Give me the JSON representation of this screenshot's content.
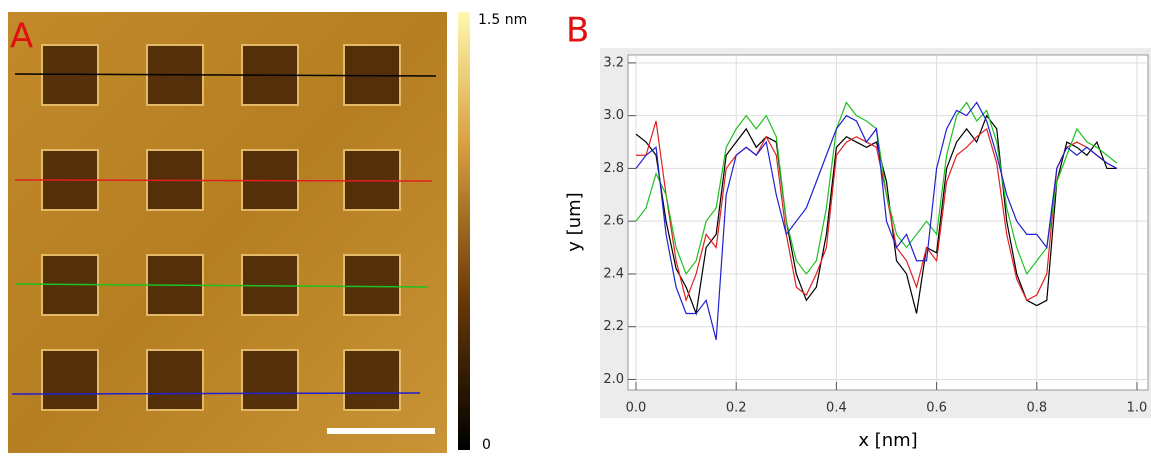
{
  "panels": {
    "a": "A",
    "b": "B"
  },
  "colorbar": {
    "max_label": "1.5 nm",
    "min_label": "0"
  },
  "chart_data": {
    "type": "line",
    "xlabel": "x [nm]",
    "ylabel": "y [um]",
    "xlim": [
      -0.016,
      1.022
    ],
    "ylim": [
      1.96,
      3.23
    ],
    "xticks": [
      {
        "value": 0,
        "label": "0.0"
      },
      0.2,
      0.4,
      0.6,
      0.8,
      {
        "value": 1,
        "label": "1.0"
      }
    ],
    "yticks": [
      {
        "value": 2,
        "label": "2.0"
      },
      2.2,
      2.4,
      2.6,
      2.8,
      {
        "value": 3,
        "label": "3.0"
      },
      3.2
    ],
    "grid": true,
    "x": [
      0,
      0.02,
      0.04,
      0.06,
      0.08,
      0.1,
      0.12,
      0.14,
      0.16,
      0.18,
      0.2,
      0.22,
      0.24,
      0.26,
      0.28,
      0.3,
      0.32,
      0.34,
      0.36,
      0.38,
      0.4,
      0.42,
      0.44,
      0.46,
      0.48,
      0.5,
      0.52,
      0.54,
      0.56,
      0.58,
      0.6,
      0.62,
      0.64,
      0.66,
      0.68,
      0.7,
      0.72,
      0.74,
      0.76,
      0.78,
      0.8,
      0.82,
      0.84,
      0.86,
      0.88,
      0.9,
      0.92,
      0.94,
      0.96
    ],
    "series": [
      {
        "color": "#000000",
        "values": [
          2.93,
          2.9,
          2.85,
          2.6,
          2.42,
          2.35,
          2.25,
          2.5,
          2.55,
          2.85,
          2.9,
          2.95,
          2.88,
          2.92,
          2.9,
          2.6,
          2.4,
          2.3,
          2.35,
          2.55,
          2.88,
          2.92,
          2.9,
          2.88,
          2.9,
          2.75,
          2.45,
          2.4,
          2.25,
          2.5,
          2.48,
          2.8,
          2.9,
          2.95,
          2.9,
          3.0,
          2.95,
          2.6,
          2.4,
          2.3,
          2.28,
          2.3,
          2.75,
          2.9,
          2.88,
          2.85,
          2.9,
          2.8,
          2.8
        ]
      },
      {
        "color": "#e02020",
        "values": [
          2.85,
          2.85,
          2.98,
          2.7,
          2.45,
          2.3,
          2.4,
          2.55,
          2.5,
          2.8,
          2.85,
          2.88,
          2.85,
          2.92,
          2.85,
          2.55,
          2.35,
          2.32,
          2.4,
          2.5,
          2.85,
          2.9,
          2.92,
          2.9,
          2.88,
          2.7,
          2.5,
          2.45,
          2.35,
          2.5,
          2.45,
          2.75,
          2.85,
          2.88,
          2.92,
          2.95,
          2.82,
          2.55,
          2.38,
          2.3,
          2.32,
          2.4,
          2.8,
          2.88,
          2.9,
          2.88,
          2.85,
          2.82,
          2.8
        ]
      },
      {
        "color": "#20c020",
        "values": [
          2.6,
          2.65,
          2.78,
          2.7,
          2.5,
          2.4,
          2.45,
          2.6,
          2.65,
          2.88,
          2.95,
          3.0,
          2.95,
          3.0,
          2.92,
          2.6,
          2.45,
          2.4,
          2.45,
          2.65,
          2.95,
          3.05,
          3.0,
          2.98,
          2.95,
          2.7,
          2.55,
          2.5,
          2.55,
          2.6,
          2.55,
          2.85,
          3.0,
          3.05,
          2.98,
          3.02,
          2.9,
          2.65,
          2.5,
          2.4,
          2.45,
          2.5,
          2.75,
          2.85,
          2.95,
          2.9,
          2.88,
          2.85,
          2.82
        ]
      },
      {
        "color": "#2020d0",
        "values": [
          2.8,
          2.85,
          2.88,
          2.55,
          2.35,
          2.25,
          2.25,
          2.3,
          2.15,
          2.7,
          2.85,
          2.88,
          2.85,
          2.9,
          2.7,
          2.55,
          2.6,
          2.65,
          2.75,
          2.85,
          2.95,
          3.0,
          2.98,
          2.9,
          2.95,
          2.6,
          2.5,
          2.55,
          2.45,
          2.45,
          2.8,
          2.95,
          3.02,
          3.0,
          3.05,
          2.98,
          2.85,
          2.7,
          2.6,
          2.55,
          2.55,
          2.5,
          2.8,
          2.88,
          2.85,
          2.88,
          2.85,
          2.82,
          2.8
        ]
      }
    ]
  }
}
